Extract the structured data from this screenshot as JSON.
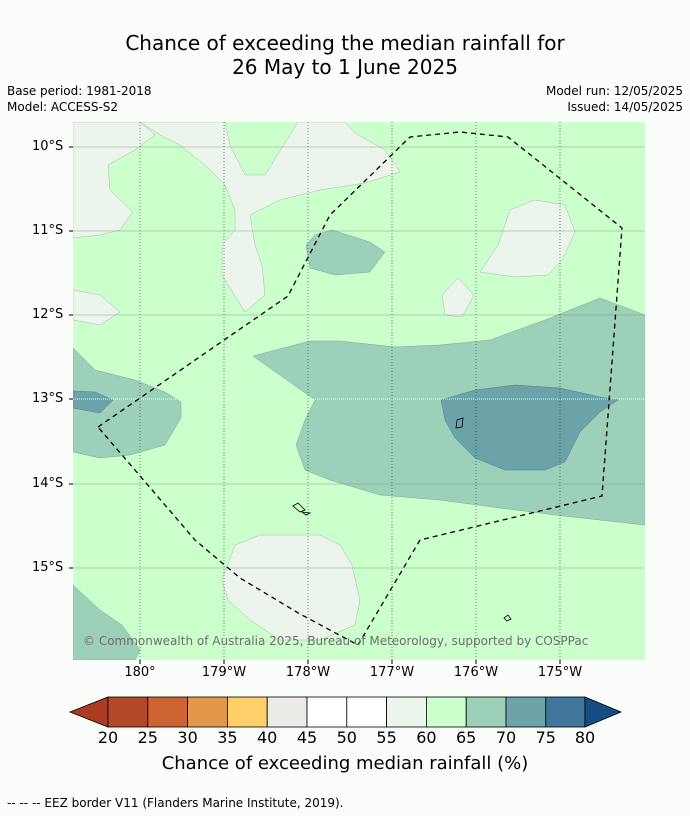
{
  "title": {
    "line1": "Chance of exceeding the median rainfall for",
    "line2": "26 May to 1 June 2025"
  },
  "meta": {
    "base_period": "Base period: 1981-2018",
    "model": "Model: ACCESS-S2",
    "model_run": "Model run: 12/05/2025",
    "issued": "Issued: 14/05/2025"
  },
  "map": {
    "latitude_labels": [
      "10°S",
      "11°S",
      "12°S",
      "13°S",
      "14°S",
      "15°S"
    ],
    "longitude_labels": [
      "180°",
      "179°W",
      "178°W",
      "177°W",
      "176°W",
      "175°W"
    ],
    "copyright": "© Commonwealth of Australia 2025, Bureau of Meteorology, supported by COSPPac",
    "colors": {
      "band_55_60": "#ebf5eb",
      "band_60_65": "#cbffcb",
      "band_65_70": "#9cd0b8",
      "band_70_75": "#6ba3a8"
    }
  },
  "colorbar": {
    "title": "Chance of exceeding median rainfall (%)",
    "ticks": [
      "20",
      "25",
      "30",
      "35",
      "40",
      "45",
      "50",
      "55",
      "60",
      "65",
      "70",
      "75",
      "80"
    ],
    "colors": [
      "#ad3b24",
      "#b5472a",
      "#ce6434",
      "#e3974b",
      "#ffcf6a",
      "#eceae6",
      "#ffffff",
      "#ffffff",
      "#ebf5eb",
      "#cbffcb",
      "#9cd0b8",
      "#6ba3a8",
      "#40769b",
      "#164c84"
    ]
  },
  "footer": {
    "legend_text": "--  --  -- EEZ border V11 (Flanders Marine Institute, 2019)."
  }
}
